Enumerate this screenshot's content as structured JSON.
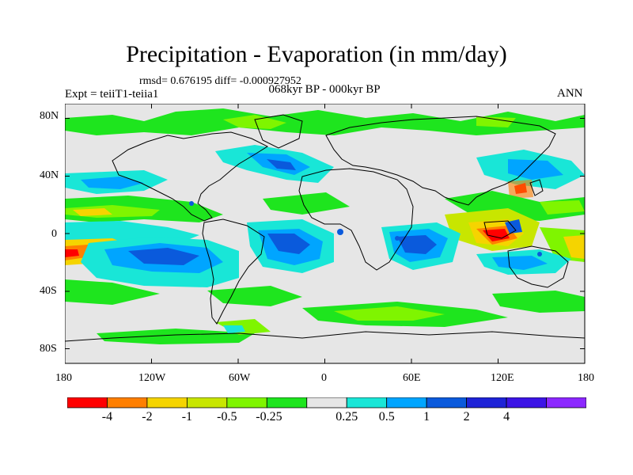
{
  "title": "Precipitation - Evaporation (in mm/day)",
  "stats": "rmsd= 0.676195 diff= -0.000927952",
  "period": "068kyr BP - 000kyr BP",
  "experiment": "Expt = teiiT1-teiia1",
  "season": "ANN",
  "map": {
    "background_color": "#e6e6e6",
    "lat_labels": [
      "80N",
      "40N",
      "0",
      "40S",
      "80S"
    ],
    "lon_labels": [
      "180",
      "120W",
      "60W",
      "0",
      "60E",
      "120E",
      "180"
    ]
  },
  "colorbar": {
    "colors": [
      "#ff0000",
      "#ff7f00",
      "#f5d400",
      "#c8e600",
      "#7ff500",
      "#1ee51e",
      "#e6e6e6",
      "#19e6d7",
      "#00a5ff",
      "#0a5adc",
      "#1e23d7",
      "#3c14e6",
      "#8c28ff"
    ],
    "labels": [
      "-4",
      "-2",
      "-1",
      "-0.5",
      "-0.25",
      "0.25",
      "0.5",
      "1",
      "2",
      "4"
    ]
  }
}
